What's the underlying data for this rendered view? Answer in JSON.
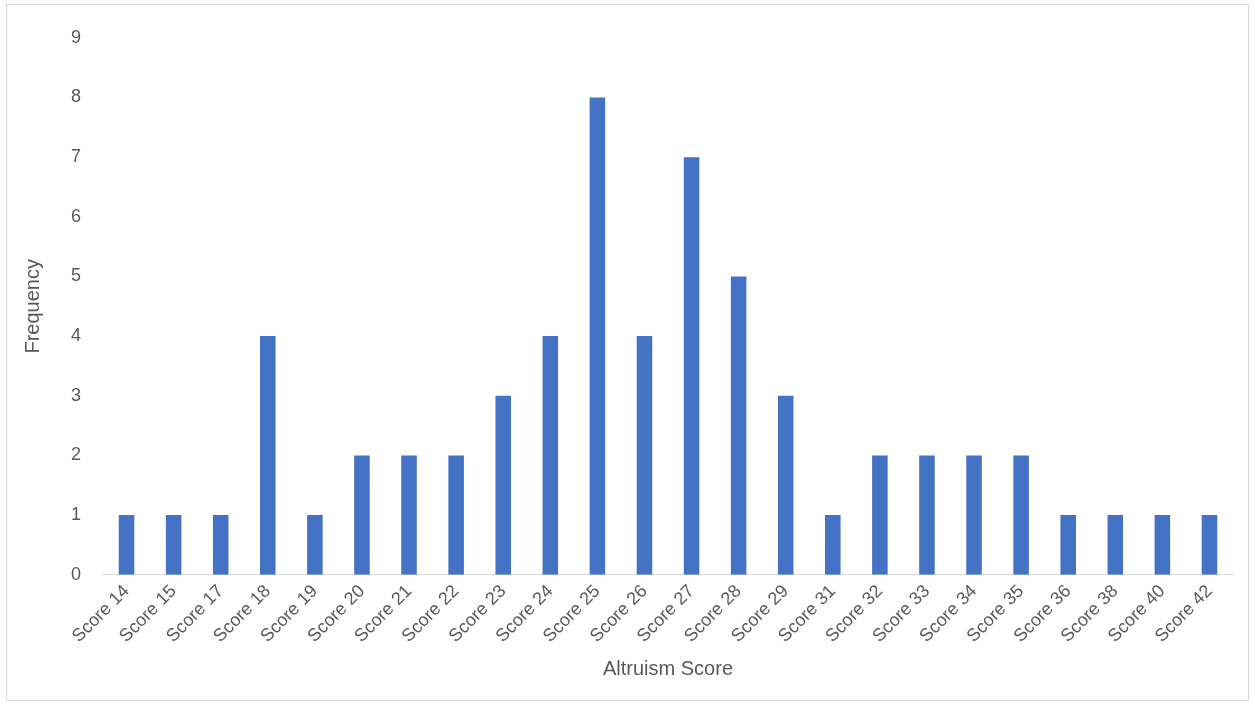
{
  "chart_data": {
    "type": "bar",
    "xlabel": "Altruism Score",
    "ylabel": "Frequency",
    "categories": [
      "Score 14",
      "Score 15",
      "Score 17",
      "Score 18",
      "Score 19",
      "Score 20",
      "Score 21",
      "Score 22",
      "Score 23",
      "Score 24",
      "Score 25",
      "Score 26",
      "Score 27",
      "Score 28",
      "Score 29",
      "Score 31",
      "Score 32",
      "Score 33",
      "Score 34",
      "Score 35",
      "Score 36",
      "Score 38",
      "Score 40",
      "Score 42"
    ],
    "values": [
      1,
      1,
      1,
      4,
      1,
      2,
      2,
      2,
      3,
      4,
      8,
      4,
      7,
      5,
      3,
      1,
      2,
      2,
      2,
      2,
      1,
      1,
      1,
      1
    ],
    "color": "#4472c4",
    "ylim": [
      0,
      9
    ],
    "yticks": [
      0,
      1,
      2,
      3,
      4,
      5,
      6,
      7,
      8,
      9
    ],
    "grid": false,
    "legend": false
  }
}
